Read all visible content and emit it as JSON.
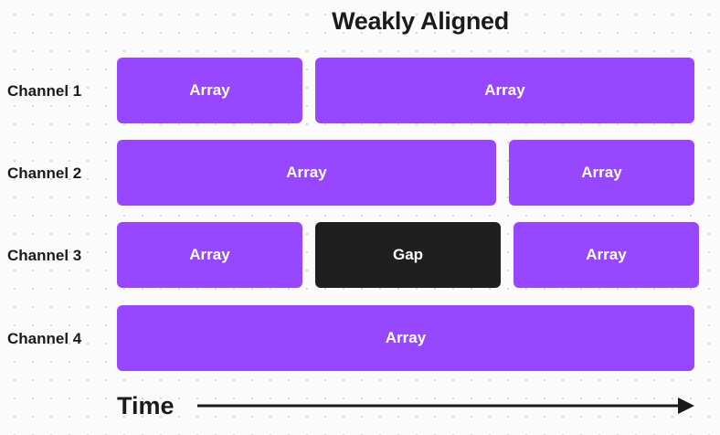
{
  "title": "Weakly Aligned",
  "channels": [
    {
      "label": "Channel 1",
      "blocks": [
        {
          "type": "array",
          "label": "Array"
        },
        {
          "type": "array",
          "label": "Array"
        }
      ]
    },
    {
      "label": "Channel 2",
      "blocks": [
        {
          "type": "array",
          "label": "Array"
        },
        {
          "type": "array",
          "label": "Array"
        }
      ]
    },
    {
      "label": "Channel 3",
      "blocks": [
        {
          "type": "array",
          "label": "Array"
        },
        {
          "type": "gap",
          "label": "Gap"
        },
        {
          "type": "array",
          "label": "Array"
        }
      ]
    },
    {
      "label": "Channel 4",
      "blocks": [
        {
          "type": "array",
          "label": "Array"
        }
      ]
    }
  ],
  "axis": {
    "label": "Time"
  },
  "colors": {
    "array": "#9747ff",
    "gap": "#1f1f1f",
    "text": "#1b1b1b"
  }
}
